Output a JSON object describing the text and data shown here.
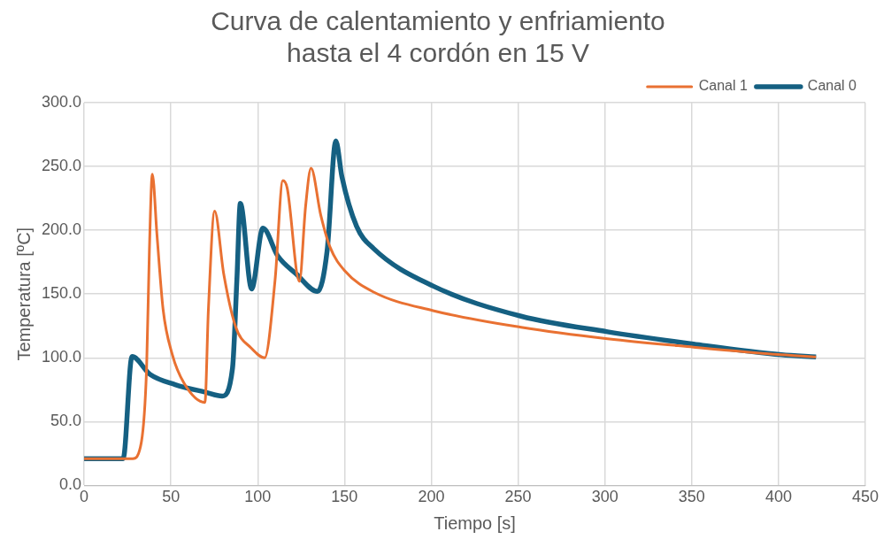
{
  "chart_data": {
    "type": "line",
    "title": [
      "Curva de calentamiento y enfriamiento",
      "hasta el 4 cordón en 15 V"
    ],
    "xlabel": "Tiempo [s]",
    "ylabel": "Temperatura [ºC]",
    "xlim": [
      0,
      450
    ],
    "xticks": [
      0,
      50,
      100,
      150,
      200,
      250,
      300,
      350,
      400,
      450
    ],
    "ylim": [
      0,
      300
    ],
    "yticks": [
      {
        "value": 0,
        "label": "0.0"
      },
      {
        "value": 50,
        "label": "50.0"
      },
      {
        "value": 100,
        "label": "100.0"
      },
      {
        "value": 150,
        "label": "150.0"
      },
      {
        "value": 200,
        "label": "200.0"
      },
      {
        "value": 250,
        "label": "250.0"
      },
      {
        "value": 300,
        "label": "300.0"
      }
    ],
    "grid": true,
    "legend": "top right",
    "marker": "none",
    "line_style": "solid",
    "series": [
      {
        "name": "Canal 0",
        "color": "#156082",
        "x": [
          0,
          22.5,
          27.6,
          38,
          52.5,
          70,
          79.5,
          85.5,
          88,
          90,
          96.5,
          103,
          111.5,
          122,
          134.5,
          140,
          145,
          148.5,
          157,
          166.8,
          201,
          251.7,
          301.5,
          351,
          401.7,
          421.6
        ],
        "values": [
          21,
          21,
          101,
          87,
          79,
          73,
          70,
          92,
          161,
          221,
          154,
          201.6,
          180,
          166,
          152,
          184,
          270,
          242,
          203,
          185.6,
          156.3,
          132.6,
          120.4,
          110.8,
          102.4,
          100.7
        ]
      },
      {
        "name": "Canal 1",
        "color": "#e97132",
        "x": [
          0,
          28,
          33,
          36,
          37.6,
          39.3,
          42,
          45.5,
          50.7,
          57.6,
          69.6,
          71.6,
          75.2,
          80.4,
          87.4,
          96,
          104,
          110,
          114.5,
          117,
          124,
          127.6,
          130.7,
          136.3,
          141.6,
          150.3,
          166.8,
          201,
          251.7,
          301.5,
          351,
          401.7,
          421.6
        ],
        "values": [
          21,
          21,
          34,
          92,
          184,
          244,
          196,
          138,
          103,
          80,
          65,
          138,
          215,
          166,
          124,
          108,
          100,
          161,
          239,
          233,
          160,
          219,
          248.6,
          212,
          187,
          168,
          151.5,
          137,
          124,
          115,
          108.4,
          102.4,
          100.7
        ]
      }
    ]
  }
}
